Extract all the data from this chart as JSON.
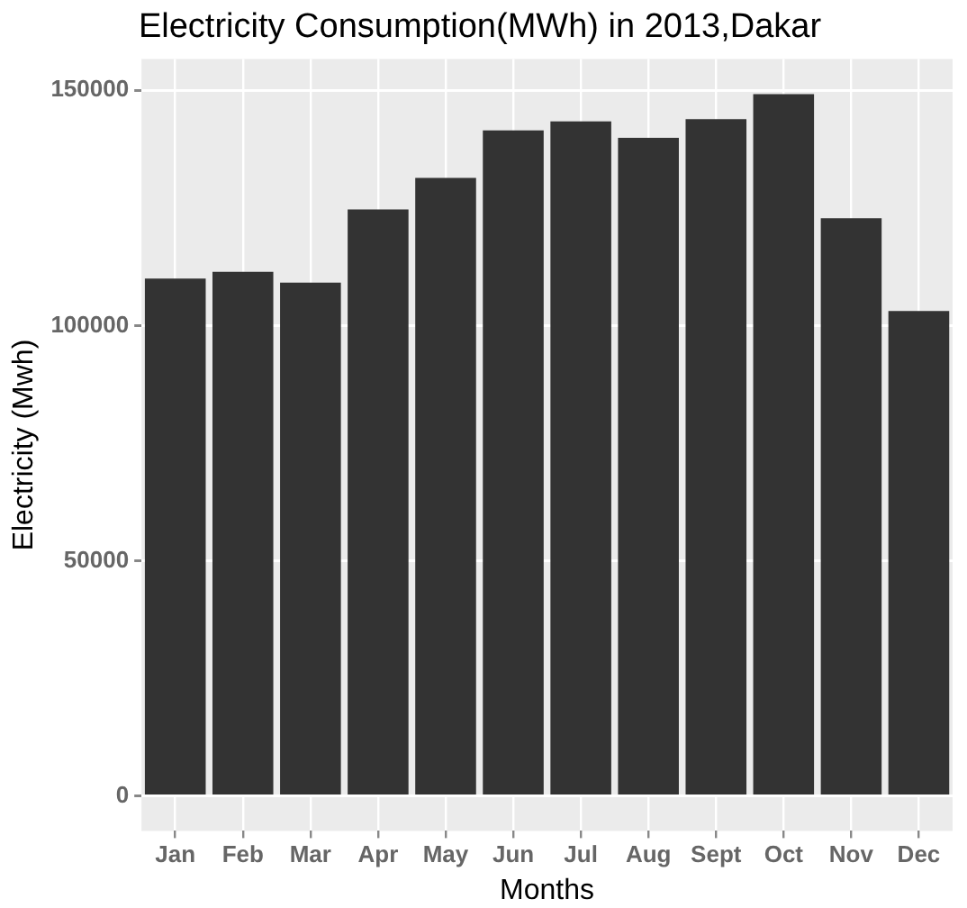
{
  "chart_data": {
    "type": "bar",
    "title": "Electricity Consumption(MWh) in 2013,Dakar",
    "xlabel": "Months",
    "ylabel": "Electricity (Mwh)",
    "categories": [
      "Jan",
      "Feb",
      "Mar",
      "Apr",
      "May",
      "Jun",
      "Jul",
      "Aug",
      "Sept",
      "Oct",
      "Nov",
      "Dec"
    ],
    "values": [
      110000,
      111400,
      109100,
      124700,
      131400,
      141500,
      143400,
      139900,
      143900,
      149200,
      122800,
      103100
    ],
    "color": "#333333",
    "ylim": [
      -7450,
      156650
    ],
    "yticks": [
      0,
      50000,
      100000,
      150000
    ],
    "grid": true
  }
}
